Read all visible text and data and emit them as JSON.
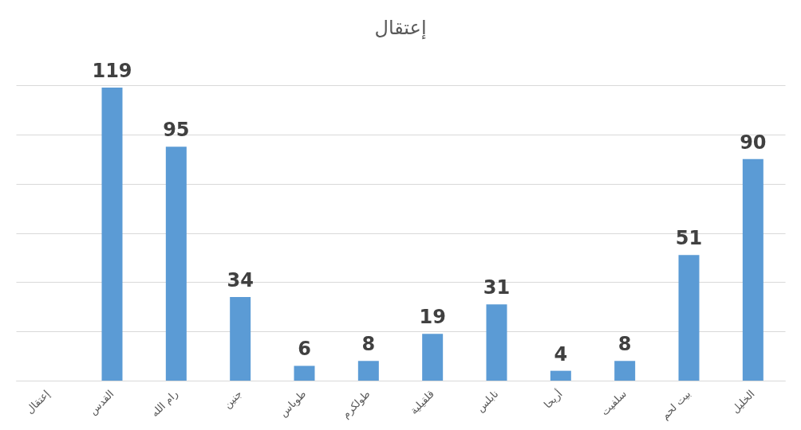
{
  "chart_data": {
    "type": "bar",
    "title": "إعتقال",
    "categories": [
      "إعتقال",
      "القدس",
      "رام الله",
      "جنين",
      "طوباس",
      "طولكرم",
      "قلقيلية",
      "نابلس",
      "أريحا",
      "سلفيت",
      "بيت لحم",
      "الخليل"
    ],
    "values": [
      null,
      119,
      95,
      34,
      6,
      8,
      19,
      31,
      4,
      8,
      51,
      90
    ],
    "color": "#5b9bd5",
    "grid": "y",
    "tick_labels": "x",
    "data_labels": true
  }
}
